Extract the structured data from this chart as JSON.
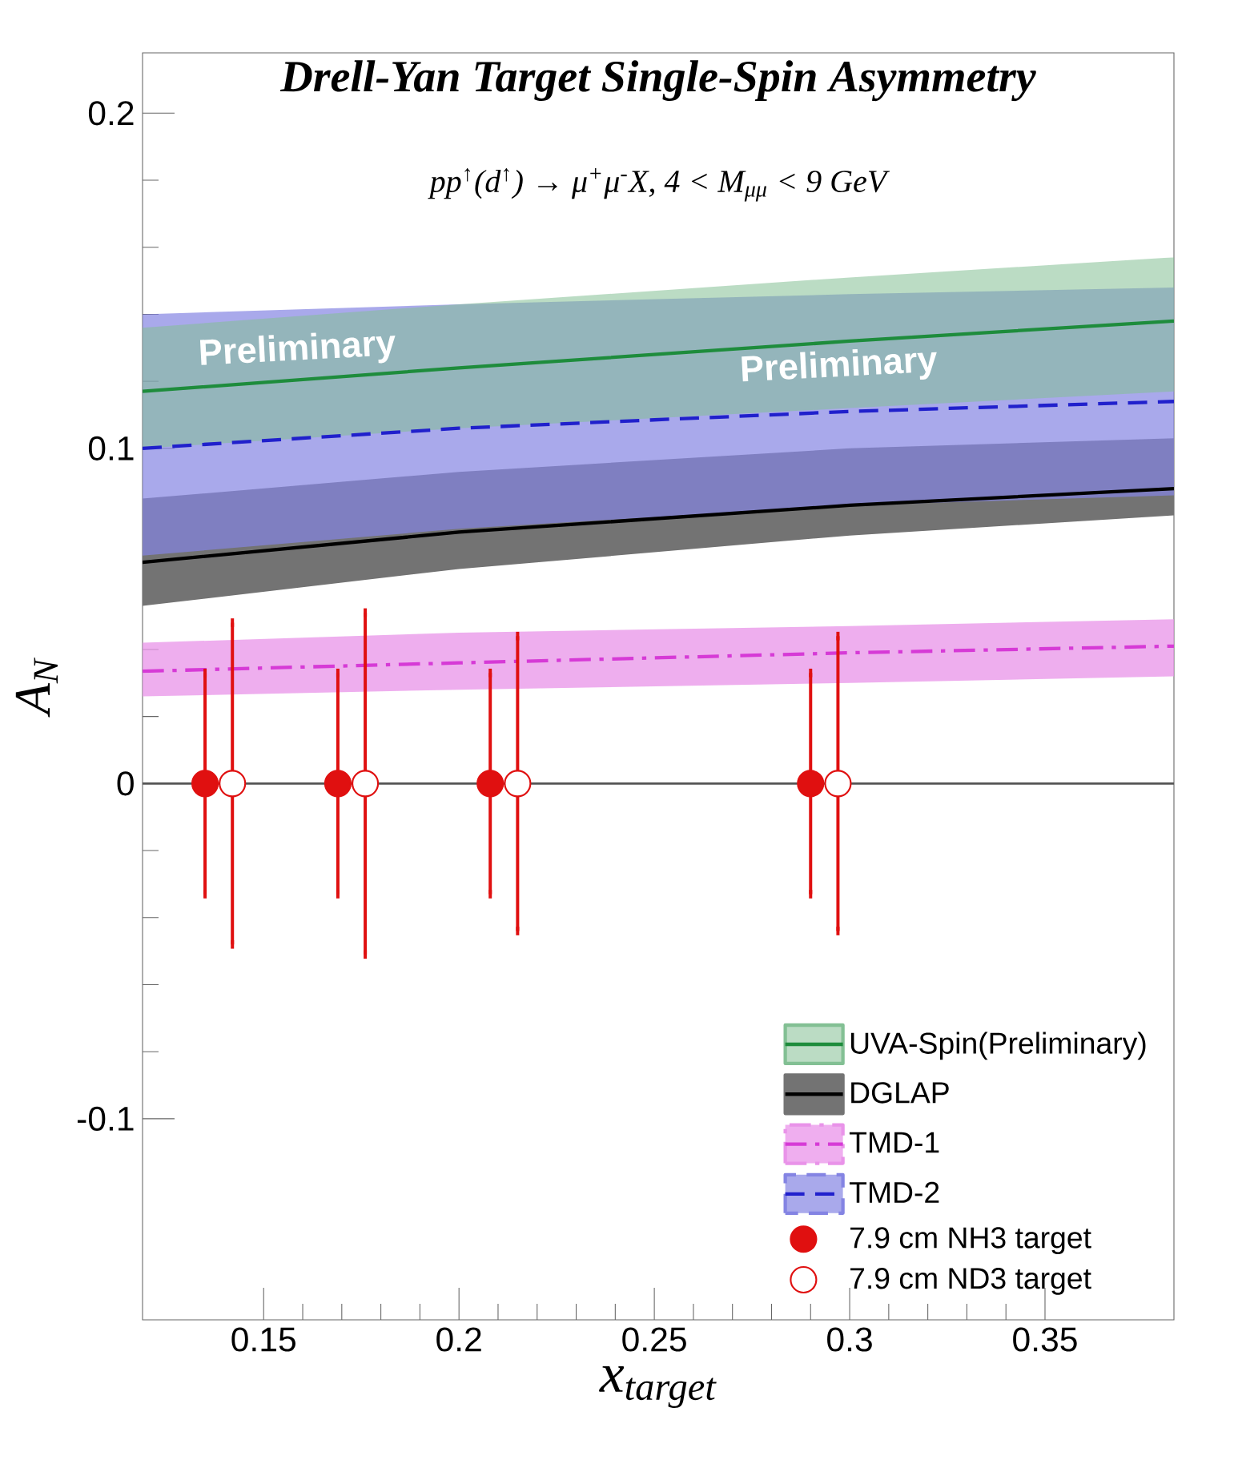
{
  "chart_data": {
    "type": "line",
    "title": "Drell-Yan Target Single-Spin Asymmetry",
    "subtitle": "pp$^{↑}$(d$^{↑}$) → μ$^{+}$μ$^{-}$X, 4 < M$_{μμ}$ < 9 GeV",
    "xlabel": "x$_{target}$",
    "ylabel": "A$_{N}$",
    "xlim": [
      0.119,
      0.383
    ],
    "ylim": [
      -0.16,
      0.218
    ],
    "xticks": [
      0.15,
      0.2,
      0.25,
      0.3,
      0.35
    ],
    "yticks": [
      -0.1,
      0,
      0.1,
      0.2
    ],
    "legend": "bottom right",
    "ref_lines": [
      {
        "axis": "y",
        "value": 0,
        "color": "#555555"
      }
    ],
    "annotations": [
      "Preliminary",
      "Preliminary"
    ],
    "series": [
      {
        "name": "UVA-Spin(Preliminary)",
        "color": "#1e8c3c",
        "line_style": "solid",
        "x": [
          0.119,
          0.2,
          0.3,
          0.383
        ],
        "values": [
          0.117,
          0.124,
          0.132,
          0.138
        ],
        "lower": [
          0.1,
          0.106,
          0.112,
          0.117
        ],
        "upper": [
          0.136,
          0.143,
          0.151,
          0.157
        ]
      },
      {
        "name": "DGLAP",
        "color": "#000000",
        "line_style": "solid",
        "x": [
          0.119,
          0.2,
          0.3,
          0.383
        ],
        "values": [
          0.066,
          0.075,
          0.083,
          0.088
        ],
        "lower": [
          0.053,
          0.064,
          0.074,
          0.08
        ],
        "upper": [
          0.085,
          0.093,
          0.1,
          0.103
        ]
      },
      {
        "name": "TMD-1",
        "color": "#d63ad6",
        "line_style": "dashdot",
        "x": [
          0.119,
          0.2,
          0.3,
          0.383
        ],
        "values": [
          0.0335,
          0.036,
          0.039,
          0.041
        ],
        "lower": [
          0.026,
          0.028,
          0.03,
          0.032
        ],
        "upper": [
          0.042,
          0.045,
          0.047,
          0.049
        ]
      },
      {
        "name": "TMD-2",
        "color": "#2020cc",
        "line_style": "dashed",
        "x": [
          0.119,
          0.2,
          0.3,
          0.383
        ],
        "values": [
          0.1,
          0.106,
          0.111,
          0.114
        ],
        "lower": [
          0.068,
          0.076,
          0.083,
          0.086
        ],
        "upper": [
          0.14,
          0.143,
          0.146,
          0.148
        ]
      },
      {
        "name": "7.9 cm NH3 target",
        "type": "scatter",
        "color": "#e01010",
        "marker": "circle",
        "x": [
          0.135,
          0.169,
          0.208,
          0.29
        ],
        "values": [
          0,
          0,
          0,
          0
        ],
        "errors": [
          0.033,
          0.033,
          0.033,
          0.033
        ]
      },
      {
        "name": "7.9 cm ND3 target",
        "type": "scatter",
        "color": "#e01010",
        "marker": "open circle",
        "x": [
          0.142,
          0.176,
          0.215,
          0.297
        ],
        "values": [
          0,
          0,
          0,
          0
        ],
        "errors": [
          0.048,
          0.051,
          0.044,
          0.044
        ]
      }
    ]
  }
}
